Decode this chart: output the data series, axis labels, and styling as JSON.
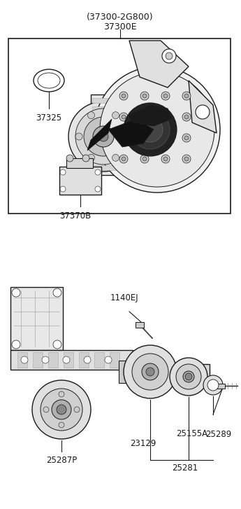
{
  "background_color": "#ffffff",
  "figsize": [
    3.45,
    7.27
  ],
  "dpi": 100,
  "top_label_paren": "(37300-2G800)",
  "top_label_part": "37300E",
  "label_37325": "37325",
  "label_37370B": "37370B",
  "label_1140EJ": "1140EJ",
  "label_25287P": "25287P",
  "label_23129": "23129",
  "label_25155A": "25155A",
  "label_25289": "25289",
  "label_25281": "25281"
}
